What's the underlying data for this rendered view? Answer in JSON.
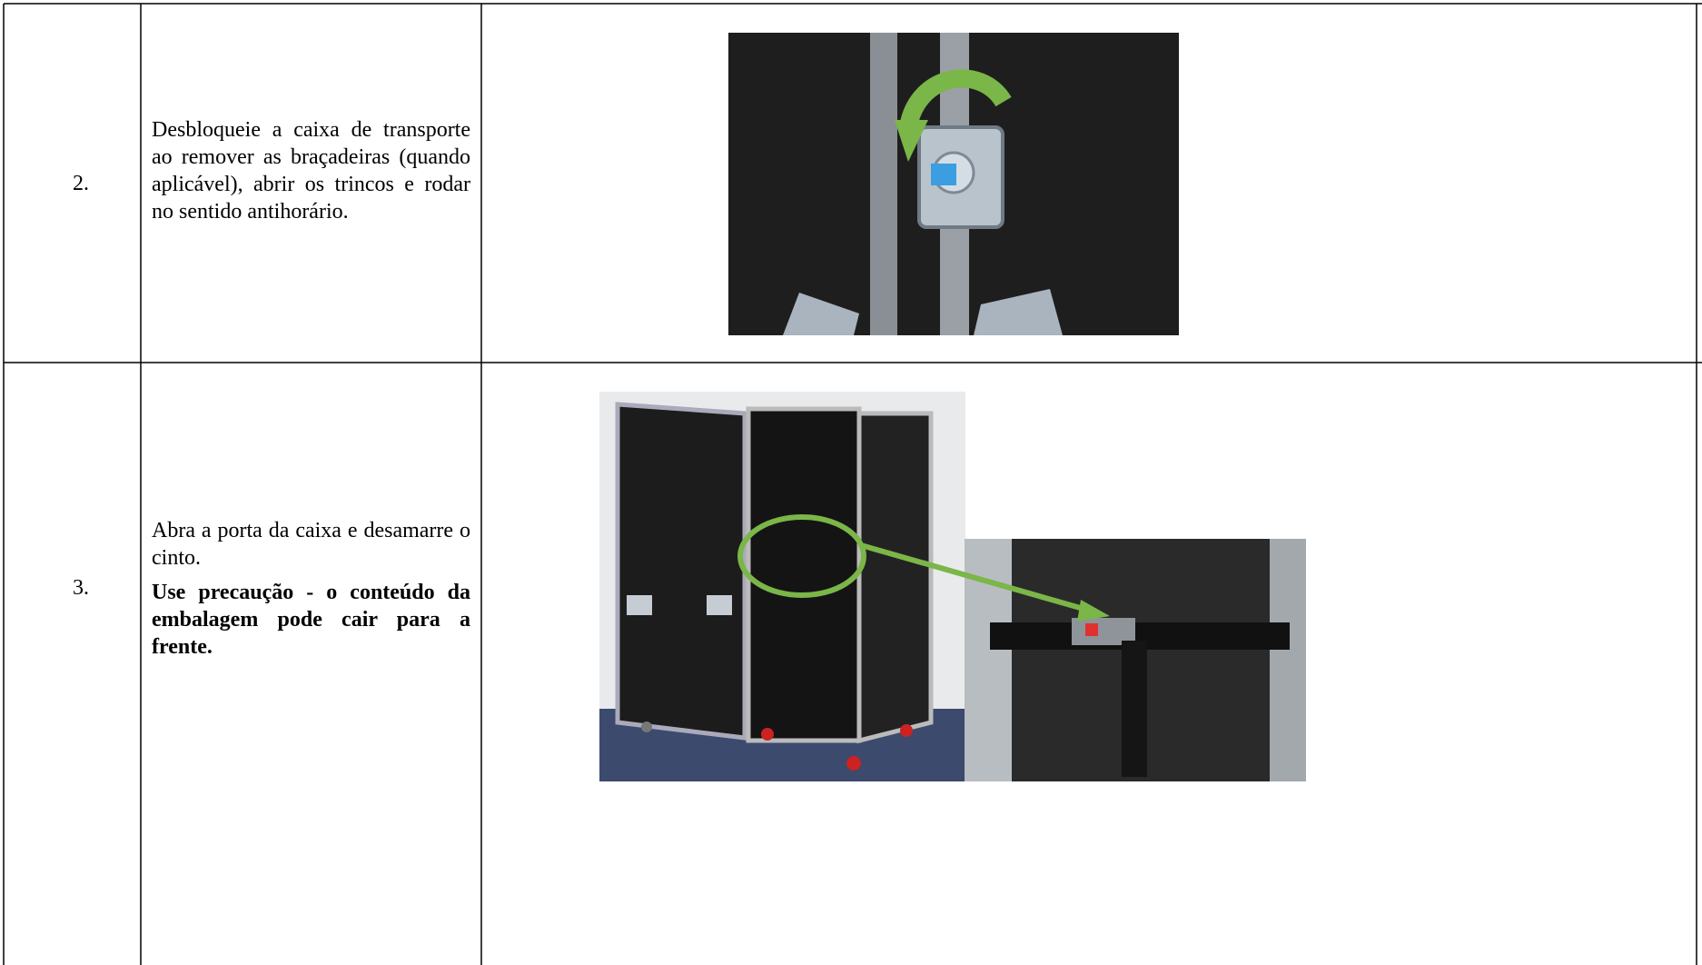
{
  "table": {
    "rows": [
      {
        "number": "2.",
        "paragraphs": [
          {
            "text": "Desbloqueie a caixa de transporte ao remover as braçadeiras (quando aplicável), abrir os trincos e rodar no sentido antihorário.",
            "bold": false
          }
        ]
      },
      {
        "number": "3.",
        "paragraphs": [
          {
            "text": "Abra a porta da caixa e desamarre o cinto.",
            "bold": false
          },
          {
            "text": "Use precaução - o conteúdo da embalagem pode cair para a frente.",
            "bold": true
          }
        ]
      }
    ]
  }
}
